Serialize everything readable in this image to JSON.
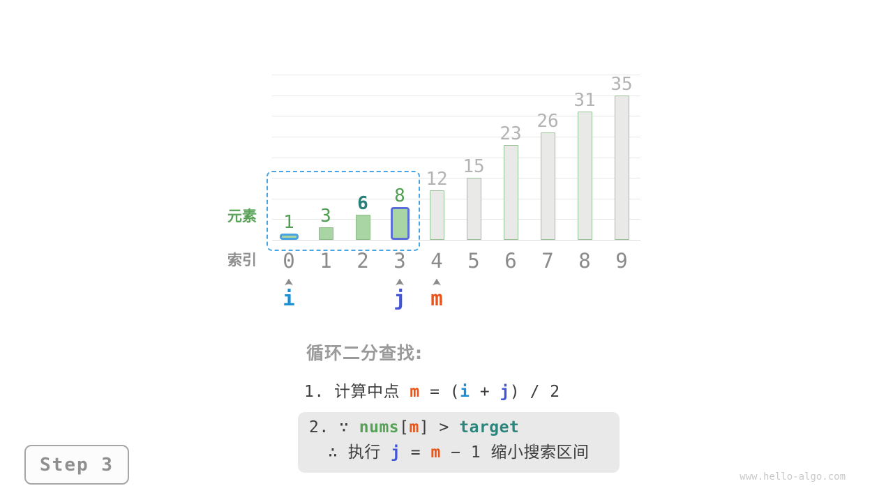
{
  "colors": {
    "green_fill": "#a9d4a4",
    "green_border": "#8cbd86",
    "gray_fill": "#e9e9e7",
    "gray_bar_border": "#97c297",
    "i_blue": "#1b8fd4",
    "i_border": "#49a3e0",
    "j_indigo": "#4355d4",
    "j_border": "#5a6ed8",
    "m_orange": "#e8541a",
    "value_green": "#4f9e52",
    "target_teal": "#2a8078",
    "value_gray": "#b3b3b3",
    "index_gray": "#8a8a8a",
    "axis_green": "#5aa257",
    "axis_gray": "#8f8f8f",
    "heading_gray": "#9a9a9a",
    "body_text": "#3c3c3c",
    "code_green": "#57a057",
    "code_teal": "#2a867c",
    "gridline": "#e6e6e6",
    "baseline": "#dcdcdc",
    "range_dash": "#4aa4e0",
    "note_bg": "#e9e9e9",
    "step_text": "#8f8f8f",
    "step_border": "#a6a6a6",
    "step_bg": "#fcfcfc",
    "watermark": "#c9c9c9"
  },
  "chart": {
    "element_label": "元素",
    "index_label": "索引"
  },
  "chart_data": {
    "type": "bar",
    "title": "",
    "categories": [
      "0",
      "1",
      "2",
      "3",
      "4",
      "5",
      "6",
      "7",
      "8",
      "9"
    ],
    "values": [
      1,
      3,
      6,
      8,
      12,
      15,
      23,
      26,
      31,
      35
    ],
    "xlabel": "索引",
    "ylabel": "元素",
    "ylim": [
      0,
      40
    ],
    "grid_step": 5,
    "grid": "on",
    "legend": "none",
    "target": 6,
    "search_range": [
      0,
      3
    ],
    "pointers": [
      {
        "name": "i",
        "index": 0,
        "color": "i_blue",
        "border": "i_border"
      },
      {
        "name": "j",
        "index": 3,
        "color": "j_indigo",
        "border": "j_border"
      },
      {
        "name": "m",
        "index": 4,
        "color": "m_orange",
        "border": null
      }
    ]
  },
  "caption": {
    "heading": "循环二分查找:",
    "step1_tokens": [
      {
        "text": "1. 计算中点 "
      },
      {
        "text": "m",
        "color": "m_orange",
        "bold": true
      },
      {
        "text": " = ("
      },
      {
        "text": "i",
        "color": "i_blue",
        "bold": true
      },
      {
        "text": " + "
      },
      {
        "text": "j",
        "color": "j_indigo",
        "bold": true
      },
      {
        "text": ") / 2"
      }
    ],
    "step2_line1_tokens": [
      {
        "text": "2. ∵ "
      },
      {
        "text": "nums",
        "color": "code_green",
        "bold": true
      },
      {
        "text": "["
      },
      {
        "text": "m",
        "color": "m_orange",
        "bold": true
      },
      {
        "text": "] > "
      },
      {
        "text": "target",
        "color": "code_teal",
        "bold": true
      }
    ],
    "step2_line2_tokens": [
      {
        "text": "∴ 执行 "
      },
      {
        "text": "j",
        "color": "j_indigo",
        "bold": true
      },
      {
        "text": " = "
      },
      {
        "text": "m",
        "color": "m_orange",
        "bold": true
      },
      {
        "text": " − 1 缩小搜索区间"
      }
    ]
  },
  "step_badge": {
    "label": "Step 3"
  },
  "watermark": "www.hello-algo.com"
}
